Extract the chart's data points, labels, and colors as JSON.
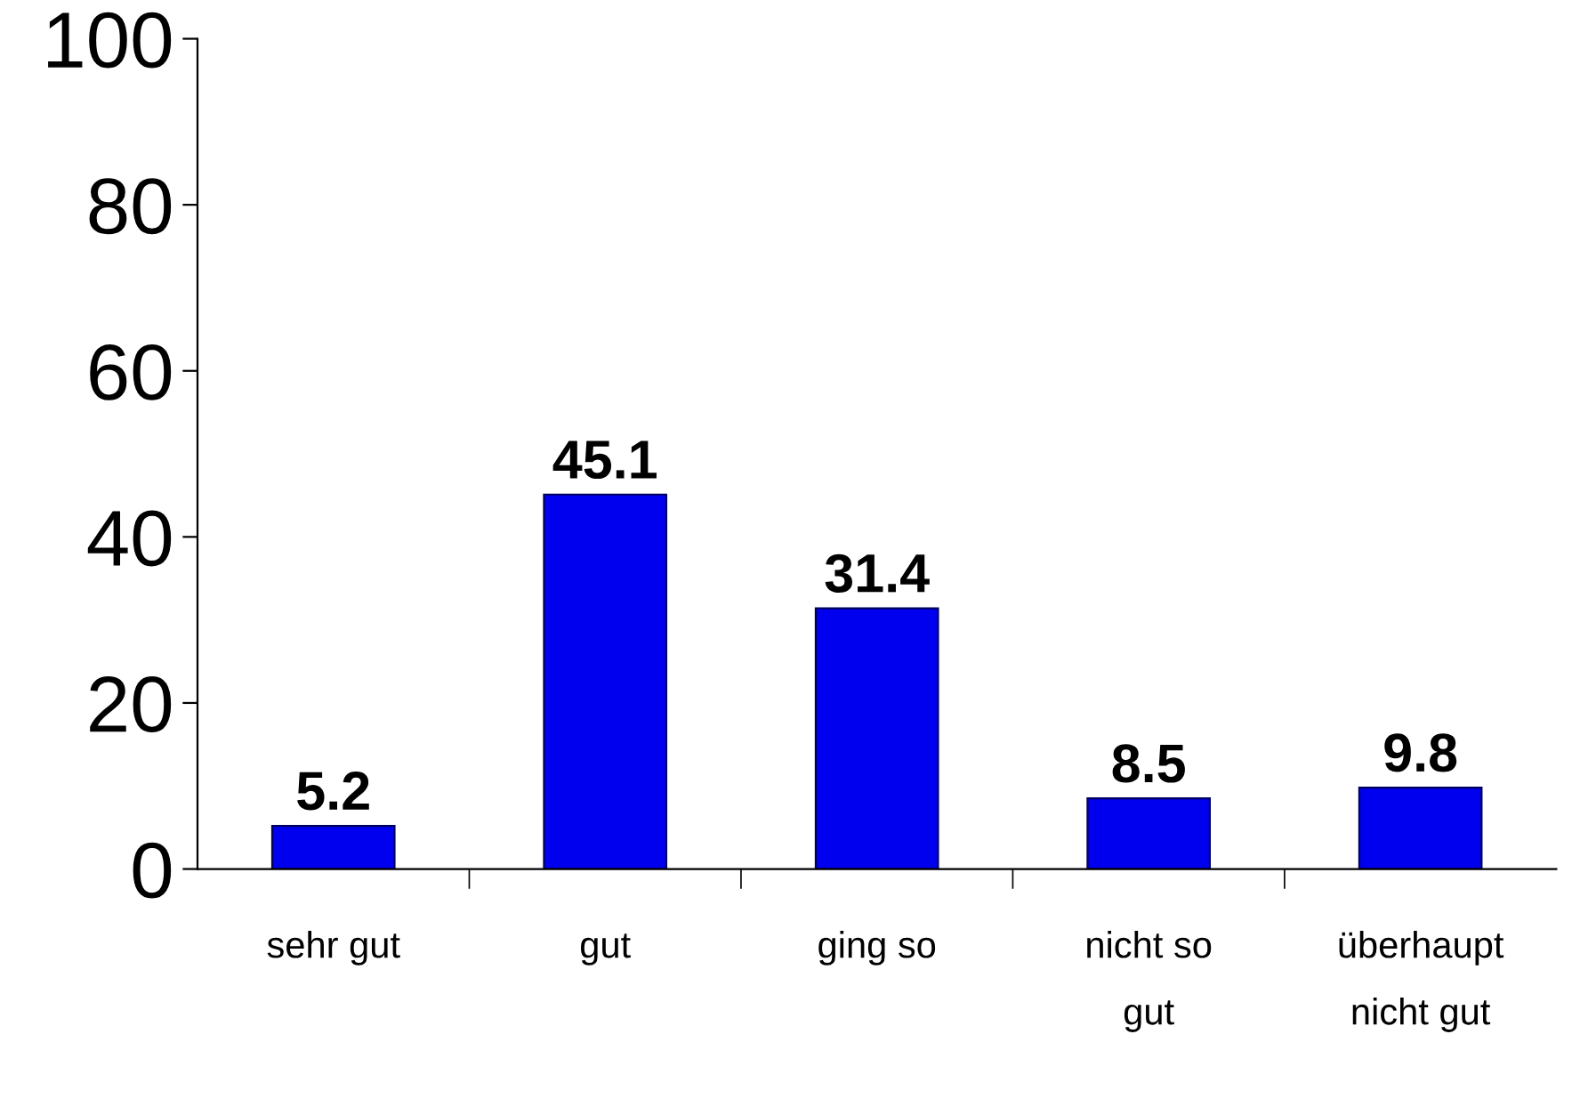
{
  "chart_data": {
    "type": "bar",
    "categories": [
      "sehr gut",
      "gut",
      "ging so",
      "nicht so\ngut",
      "überhaupt\nnicht gut"
    ],
    "values": [
      5.2,
      45.1,
      31.4,
      8.5,
      9.8
    ],
    "color": "#0000ee",
    "ylim": [
      0,
      100
    ],
    "yticks": [
      0,
      20,
      40,
      60,
      80,
      100
    ],
    "data_labels": true,
    "grid": false,
    "legend": false
  }
}
